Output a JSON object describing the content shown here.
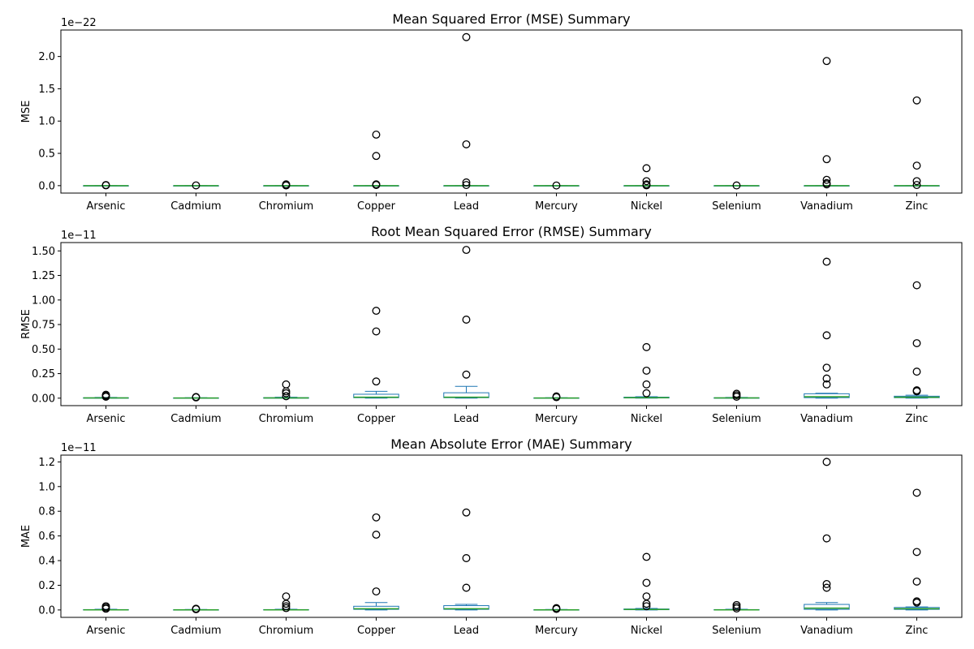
{
  "colors": {
    "box": "#1f77b4",
    "median": "#2ca02c",
    "flier_edge": "#000000",
    "axes": "#000000"
  },
  "chart_data": [
    {
      "type": "box",
      "title": "Mean Squared Error (MSE) Summary",
      "xlabel": "",
      "ylabel": "MSE",
      "offset_label": "1e−22",
      "categories": [
        "Arsenic",
        "Cadmium",
        "Chromium",
        "Copper",
        "Lead",
        "Mercury",
        "Nickel",
        "Selenium",
        "Vanadium",
        "Zinc"
      ],
      "ylim": [
        -0.115,
        2.41
      ],
      "yticks": [
        0.0,
        0.5,
        1.0,
        1.5,
        2.0
      ],
      "ytick_labels": [
        "0.0",
        "0.5",
        "1.0",
        "1.5",
        "2.0"
      ],
      "boxes": [
        {
          "q1": 0,
          "median": 0,
          "q3": 0,
          "whisker_low": 0,
          "whisker_high": 0,
          "fliers": [
            0.005,
            0.01
          ]
        },
        {
          "q1": 0,
          "median": 0,
          "q3": 0,
          "whisker_low": 0,
          "whisker_high": 0,
          "fliers": [
            0.004
          ]
        },
        {
          "q1": 0,
          "median": 0,
          "q3": 0,
          "whisker_low": 0,
          "whisker_high": 0,
          "fliers": [
            0.003,
            0.008,
            0.02
          ]
        },
        {
          "q1": 0,
          "median": 0,
          "q3": 0,
          "whisker_low": 0,
          "whisker_high": 0,
          "fliers": [
            0.01,
            0.02,
            0.46,
            0.79
          ]
        },
        {
          "q1": 0,
          "median": 0,
          "q3": 0,
          "whisker_low": 0,
          "whisker_high": 0,
          "fliers": [
            0.01,
            0.05,
            0.64,
            2.3
          ]
        },
        {
          "q1": 0,
          "median": 0,
          "q3": 0,
          "whisker_low": 0,
          "whisker_high": 0,
          "fliers": [
            0.002
          ]
        },
        {
          "q1": 0,
          "median": 0,
          "q3": 0,
          "whisker_low": 0,
          "whisker_high": 0,
          "fliers": [
            0.005,
            0.02,
            0.07,
            0.27
          ]
        },
        {
          "q1": 0,
          "median": 0,
          "q3": 0,
          "whisker_low": 0,
          "whisker_high": 0,
          "fliers": [
            0.003
          ]
        },
        {
          "q1": 0,
          "median": 0,
          "q3": 0,
          "whisker_low": 0,
          "whisker_high": 0,
          "fliers": [
            0.02,
            0.04,
            0.09,
            0.41,
            1.93
          ]
        },
        {
          "q1": 0,
          "median": 0,
          "q3": 0,
          "whisker_low": 0,
          "whisker_high": 0,
          "fliers": [
            0.01,
            0.07,
            0.31,
            1.32
          ]
        }
      ]
    },
    {
      "type": "box",
      "title": "Root Mean Squared Error (RMSE) Summary",
      "xlabel": "",
      "ylabel": "RMSE",
      "offset_label": "1e−11",
      "categories": [
        "Arsenic",
        "Cadmium",
        "Chromium",
        "Copper",
        "Lead",
        "Mercury",
        "Nickel",
        "Selenium",
        "Vanadium",
        "Zinc"
      ],
      "ylim": [
        -0.076,
        1.585
      ],
      "yticks": [
        0.0,
        0.25,
        0.5,
        0.75,
        1.0,
        1.25,
        1.5
      ],
      "ytick_labels": [
        "0.00",
        "0.25",
        "0.50",
        "0.75",
        "1.00",
        "1.25",
        "1.50"
      ],
      "boxes": [
        {
          "q1": 0.0,
          "median": 0.002,
          "q3": 0.004,
          "whisker_low": 0.0,
          "whisker_high": 0.008,
          "fliers": [
            0.015,
            0.025,
            0.035
          ]
        },
        {
          "q1": 0.0,
          "median": 0.001,
          "q3": 0.003,
          "whisker_low": 0.0,
          "whisker_high": 0.005,
          "fliers": [
            0.008,
            0.012
          ]
        },
        {
          "q1": 0.0,
          "median": 0.002,
          "q3": 0.005,
          "whisker_low": 0.0,
          "whisker_high": 0.01,
          "fliers": [
            0.02,
            0.05,
            0.07,
            0.14
          ]
        },
        {
          "q1": 0.005,
          "median": 0.01,
          "q3": 0.04,
          "whisker_low": 0.0,
          "whisker_high": 0.07,
          "fliers": [
            0.17,
            0.68,
            0.89
          ]
        },
        {
          "q1": 0.005,
          "median": 0.01,
          "q3": 0.055,
          "whisker_low": 0.0,
          "whisker_high": 0.12,
          "fliers": [
            0.24,
            0.8,
            1.51
          ]
        },
        {
          "q1": 0.0,
          "median": 0.001,
          "q3": 0.003,
          "whisker_low": 0.0,
          "whisker_high": 0.005,
          "fliers": [
            0.01,
            0.018
          ]
        },
        {
          "q1": 0.002,
          "median": 0.005,
          "q3": 0.01,
          "whisker_low": 0.0,
          "whisker_high": 0.015,
          "fliers": [
            0.05,
            0.14,
            0.28,
            0.52
          ]
        },
        {
          "q1": 0.0,
          "median": 0.002,
          "q3": 0.004,
          "whisker_low": 0.0,
          "whisker_high": 0.008,
          "fliers": [
            0.015,
            0.03,
            0.045
          ]
        },
        {
          "q1": 0.005,
          "median": 0.015,
          "q3": 0.045,
          "whisker_low": 0.0,
          "whisker_high": 0.05,
          "fliers": [
            0.14,
            0.2,
            0.31,
            0.64,
            1.39
          ]
        },
        {
          "q1": 0.005,
          "median": 0.01,
          "q3": 0.02,
          "whisker_low": 0.0,
          "whisker_high": 0.03,
          "fliers": [
            0.07,
            0.08,
            0.27,
            0.56,
            1.15
          ]
        }
      ]
    },
    {
      "type": "box",
      "title": "Mean Absolute Error (MAE) Summary",
      "xlabel": "",
      "ylabel": "MAE",
      "offset_label": "1e−11",
      "categories": [
        "Arsenic",
        "Cadmium",
        "Chromium",
        "Copper",
        "Lead",
        "Mercury",
        "Nickel",
        "Selenium",
        "Vanadium",
        "Zinc"
      ],
      "ylim": [
        -0.06,
        1.255
      ],
      "yticks": [
        0.0,
        0.2,
        0.4,
        0.6,
        0.8,
        1.0,
        1.2
      ],
      "ytick_labels": [
        "0.0",
        "0.2",
        "0.4",
        "0.6",
        "0.8",
        "1.0",
        "1.2"
      ],
      "boxes": [
        {
          "q1": 0.0,
          "median": 0.001,
          "q3": 0.003,
          "whisker_low": 0.0,
          "whisker_high": 0.006,
          "fliers": [
            0.01,
            0.02,
            0.03
          ]
        },
        {
          "q1": 0.0,
          "median": 0.001,
          "q3": 0.002,
          "whisker_low": 0.0,
          "whisker_high": 0.004,
          "fliers": [
            0.006,
            0.01
          ]
        },
        {
          "q1": 0.0,
          "median": 0.001,
          "q3": 0.003,
          "whisker_low": 0.0,
          "whisker_high": 0.006,
          "fliers": [
            0.015,
            0.03,
            0.05,
            0.11
          ]
        },
        {
          "q1": 0.005,
          "median": 0.01,
          "q3": 0.03,
          "whisker_low": 0.0,
          "whisker_high": 0.06,
          "fliers": [
            0.15,
            0.61,
            0.75
          ]
        },
        {
          "q1": 0.005,
          "median": 0.01,
          "q3": 0.035,
          "whisker_low": 0.0,
          "whisker_high": 0.045,
          "fliers": [
            0.18,
            0.42,
            0.79
          ]
        },
        {
          "q1": 0.0,
          "median": 0.001,
          "q3": 0.002,
          "whisker_low": 0.0,
          "whisker_high": 0.004,
          "fliers": [
            0.008,
            0.015
          ]
        },
        {
          "q1": 0.002,
          "median": 0.004,
          "q3": 0.008,
          "whisker_low": 0.0,
          "whisker_high": 0.012,
          "fliers": [
            0.03,
            0.05,
            0.11,
            0.22,
            0.43
          ]
        },
        {
          "q1": 0.0,
          "median": 0.001,
          "q3": 0.003,
          "whisker_low": 0.0,
          "whisker_high": 0.006,
          "fliers": [
            0.012,
            0.025,
            0.04
          ]
        },
        {
          "q1": 0.005,
          "median": 0.015,
          "q3": 0.045,
          "whisker_low": 0.0,
          "whisker_high": 0.06,
          "fliers": [
            0.18,
            0.21,
            0.58,
            1.2
          ]
        },
        {
          "q1": 0.005,
          "median": 0.01,
          "q3": 0.02,
          "whisker_low": 0.0,
          "whisker_high": 0.025,
          "fliers": [
            0.06,
            0.07,
            0.23,
            0.47,
            0.95
          ]
        }
      ]
    }
  ]
}
